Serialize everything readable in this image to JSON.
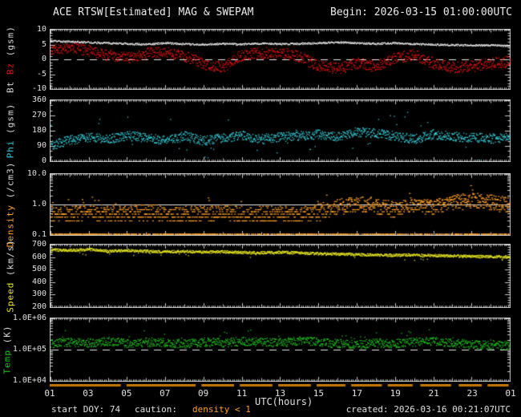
{
  "header": {
    "title": "ACE RTSW[Estimated] MAG & SWEPAM",
    "begin_label": "Begin: 2026-03-15 01:00:00UTC"
  },
  "footer": {
    "xlabel": "UTC(hours)",
    "xtick_labels": [
      "01",
      "03",
      "05",
      "07",
      "09",
      "11",
      "13",
      "15",
      "17",
      "19",
      "21",
      "23",
      "01"
    ],
    "xtick_hours": [
      1,
      3,
      5,
      7,
      9,
      11,
      13,
      15,
      17,
      19,
      21,
      23,
      25
    ],
    "start_doy": "start DOY: 74",
    "caution_label": "caution:",
    "caution_value": "density < 1",
    "caution_value_color": "#ffa128",
    "caution_bar_color": "#bf7700",
    "caution_bar_segments": [
      [
        1.0,
        4.7
      ],
      [
        5.0,
        8.6
      ],
      [
        8.9,
        10.6
      ],
      [
        10.9,
        12.6
      ],
      [
        12.9,
        14.6
      ],
      [
        14.9,
        16.4
      ],
      [
        16.7,
        18.3
      ],
      [
        18.6,
        19.9
      ],
      [
        20.3,
        21.9
      ],
      [
        22.3,
        23.5
      ],
      [
        23.8,
        24.9
      ]
    ],
    "created": "created: 2026-03-16 00:21:07UTC"
  },
  "colors": {
    "frame": "#c8c8c8",
    "background": "#000000",
    "text": "#e0e0e0"
  },
  "chart_data": [
    {
      "type": "scatter",
      "name": "mag",
      "scale": "linear",
      "xlim": [
        1,
        25
      ],
      "ylim": [
        -10,
        10
      ],
      "yticks": [
        {
          "v": 10,
          "label": "10"
        },
        {
          "v": 5,
          "label": "5"
        },
        {
          "v": 0,
          "label": "0"
        },
        {
          "v": -5,
          "label": "-5"
        },
        {
          "v": -10,
          "label": "-10"
        }
      ],
      "minor_step": 1,
      "hline": {
        "v": 0,
        "dash": true
      },
      "ylabel_parts": [
        {
          "text": "Bt ",
          "color": "#d8d8d8"
        },
        {
          "text": "Bz",
          "color": "#e01212"
        },
        {
          "text": " (gsm)",
          "color": "#d8d8d8"
        }
      ],
      "x_hours": [
        1,
        2,
        3,
        4,
        5,
        6,
        7,
        8,
        9,
        10,
        11,
        12,
        13,
        14,
        15,
        16,
        17,
        18,
        19,
        20,
        21,
        22,
        23,
        24,
        25
      ],
      "series": [
        {
          "name": "Bt",
          "color": "#e6e6e6",
          "style": "dense",
          "jitter": 0.3,
          "values": [
            6.3,
            6.1,
            5.8,
            5.6,
            5.4,
            5.2,
            5.6,
            5.3,
            5.1,
            5.4,
            5.2,
            5.5,
            5.3,
            5.4,
            5.6,
            5.9,
            5.6,
            5.4,
            5.6,
            5.3,
            5.1,
            5.0,
            4.8,
            4.9,
            4.7
          ]
        },
        {
          "name": "Bz",
          "color": "#e01212",
          "style": "scatter",
          "jitter": 1.9,
          "values": [
            3.6,
            4.2,
            3.1,
            1.4,
            0.6,
            2.2,
            2.6,
            1.2,
            -1.6,
            -2.4,
            1.6,
            2.2,
            2.6,
            1.0,
            -2.2,
            -3.0,
            -1.2,
            -2.2,
            0.6,
            1.6,
            -1.2,
            -2.6,
            -2.2,
            -1.2,
            -0.6
          ]
        }
      ]
    },
    {
      "type": "scatter",
      "name": "phi",
      "scale": "linear",
      "xlim": [
        1,
        25
      ],
      "ylim": [
        0,
        360
      ],
      "yticks": [
        {
          "v": 360,
          "label": "360"
        },
        {
          "v": 270,
          "label": "270"
        },
        {
          "v": 180,
          "label": "180"
        },
        {
          "v": 90,
          "label": "90"
        },
        {
          "v": 0,
          "label": "0"
        }
      ],
      "minor_step": 30,
      "ylabel_parts": [
        {
          "text": "Phi",
          "color": "#38d0dc"
        },
        {
          "text": " (gsm)",
          "color": "#d8d8d8"
        }
      ],
      "x_hours": [
        1,
        2,
        3,
        4,
        5,
        6,
        7,
        8,
        9,
        10,
        11,
        12,
        13,
        14,
        15,
        16,
        17,
        18,
        19,
        20,
        21,
        22,
        23,
        24,
        25
      ],
      "series": [
        {
          "name": "Phi",
          "color": "#38d0dc",
          "style": "scatter",
          "jitter": 28,
          "outliers": 260,
          "values": [
            95,
            128,
            142,
            130,
            152,
            140,
            126,
            150,
            122,
            142,
            156,
            132,
            146,
            152,
            162,
            146,
            176,
            166,
            150,
            132,
            162,
            150,
            142,
            136,
            140
          ]
        }
      ]
    },
    {
      "type": "scatter",
      "name": "density",
      "scale": "log",
      "xlim": [
        1,
        25
      ],
      "ylim": [
        0.1,
        10
      ],
      "yticks": [
        {
          "v": 10,
          "label": "10.0"
        },
        {
          "v": 1,
          "label": "1.0"
        },
        {
          "v": 0.1,
          "label": "0.1"
        }
      ],
      "hline": {
        "v": 1,
        "dash": false
      },
      "floor_dashes": true,
      "ylabel_parts": [
        {
          "text": "Density",
          "color": "#ffa128"
        },
        {
          "text": " (/cm3)",
          "color": "#d8d8d8"
        }
      ],
      "x_hours": [
        1,
        2,
        3,
        4,
        5,
        6,
        7,
        8,
        9,
        10,
        11,
        12,
        13,
        14,
        15,
        16,
        17,
        18,
        19,
        20,
        21,
        22,
        23,
        24,
        25
      ],
      "series": [
        {
          "name": "Density",
          "color": "#ffa128",
          "style": "scatter",
          "logjitter": 0.25,
          "quantize": 0.1,
          "values": [
            0.5,
            0.5,
            0.6,
            0.5,
            0.5,
            0.6,
            0.5,
            0.5,
            0.5,
            0.6,
            0.5,
            0.5,
            0.5,
            0.5,
            0.6,
            0.9,
            1.1,
            0.9,
            0.7,
            1.1,
            0.8,
            1.2,
            1.4,
            1.2,
            1.0
          ]
        }
      ]
    },
    {
      "type": "scatter",
      "name": "speed",
      "scale": "linear",
      "xlim": [
        1,
        25
      ],
      "ylim": [
        200,
        700
      ],
      "yticks": [
        {
          "v": 700,
          "label": "700"
        },
        {
          "v": 600,
          "label": "600"
        },
        {
          "v": 500,
          "label": "500"
        },
        {
          "v": 400,
          "label": "400"
        },
        {
          "v": 300,
          "label": "300"
        },
        {
          "v": 200,
          "label": "200"
        }
      ],
      "minor_step": 20,
      "ylabel_parts": [
        {
          "text": "Speed",
          "color": "#e8e820"
        },
        {
          "text": " (km/s)",
          "color": "#d8d8d8"
        }
      ],
      "x_hours": [
        1,
        2,
        3,
        4,
        5,
        6,
        7,
        8,
        9,
        10,
        11,
        12,
        13,
        14,
        15,
        16,
        17,
        18,
        19,
        20,
        21,
        22,
        23,
        24,
        25
      ],
      "series": [
        {
          "name": "Speed",
          "color": "#e8e820",
          "style": "scatter",
          "jitter": 11,
          "lowtail": 40,
          "values": [
            662,
            656,
            664,
            652,
            656,
            650,
            646,
            648,
            642,
            646,
            640,
            638,
            642,
            636,
            630,
            628,
            624,
            620,
            618,
            622,
            616,
            612,
            610,
            607,
            604
          ]
        }
      ]
    },
    {
      "type": "scatter",
      "name": "temp",
      "scale": "log",
      "xlim": [
        1,
        25
      ],
      "ylim": [
        10000,
        1000000
      ],
      "yticks": [
        {
          "v": 1000000,
          "label": "1.0E+06"
        },
        {
          "v": 100000,
          "label": "1.0E+05"
        },
        {
          "v": 10000,
          "label": "1.0E+04"
        }
      ],
      "hline": {
        "v": 100000,
        "dash": true
      },
      "ylabel_parts": [
        {
          "text": "Temp",
          "color": "#22c122"
        },
        {
          "text": " (K)",
          "color": "#d8d8d8"
        }
      ],
      "x_hours": [
        1,
        2,
        3,
        4,
        5,
        6,
        7,
        8,
        9,
        10,
        11,
        12,
        13,
        14,
        15,
        16,
        17,
        18,
        19,
        20,
        21,
        22,
        23,
        24,
        25
      ],
      "series": [
        {
          "name": "Temp",
          "color": "#22c122",
          "style": "scatter",
          "logjitter": 0.14,
          "values": [
            160000,
            180000,
            170000,
            190000,
            160000,
            180000,
            170000,
            160000,
            180000,
            170000,
            190000,
            180000,
            170000,
            200000,
            180000,
            160000,
            150000,
            170000,
            160000,
            180000,
            190000,
            170000,
            150000,
            140000,
            140000
          ]
        }
      ]
    }
  ]
}
